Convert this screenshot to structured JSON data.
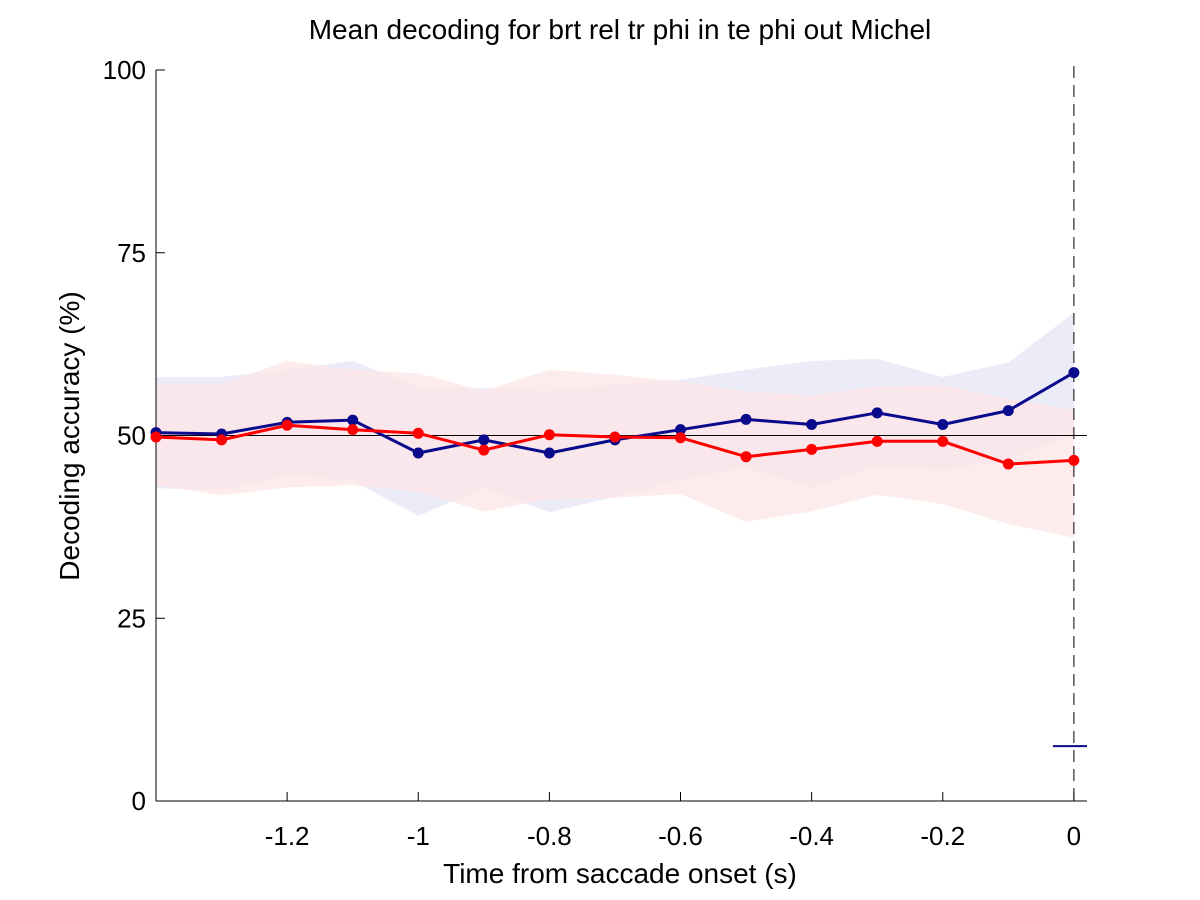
{
  "chart_data": {
    "type": "line",
    "title": "Mean decoding for brt rel tr phi in te phi out  Michel",
    "xlabel": "Time from saccade onset (s)",
    "ylabel": "Decoding accuracy (%)",
    "xlim": [
      -1.4,
      0.02
    ],
    "ylim": [
      0,
      100
    ],
    "x_ticks": [
      -1.2,
      -1.0,
      -0.8,
      -0.6,
      -0.4,
      -0.2,
      0
    ],
    "x_tick_labels": [
      "-1.2",
      "-1",
      "-0.8",
      "-0.6",
      "-0.4",
      "-0.2",
      "0"
    ],
    "y_ticks": [
      0,
      25,
      50,
      75,
      100
    ],
    "y_tick_labels": [
      "0",
      "25",
      "50",
      "75",
      "100"
    ],
    "x": [
      -1.4,
      -1.3,
      -1.2,
      -1.1,
      -1.0,
      -0.9,
      -0.8,
      -0.7,
      -0.6,
      -0.5,
      -0.4,
      -0.3,
      -0.2,
      -0.1,
      0.0
    ],
    "series": [
      {
        "color": "#0a0a8c",
        "band_color": "#e6e6f7",
        "values": [
          50.4,
          50.2,
          51.8,
          52.1,
          47.6,
          49.4,
          47.6,
          49.4,
          50.8,
          52.2,
          51.5,
          53.1,
          51.5,
          53.4,
          58.6
        ],
        "upper": [
          58,
          58,
          59,
          60.2,
          56.6,
          56.5,
          56.1,
          57,
          57.6,
          59,
          60.2,
          60.5,
          58,
          60,
          66.8
        ],
        "lower": [
          42.8,
          42.5,
          44.5,
          43.8,
          39,
          42.8,
          39.5,
          41.6,
          43.9,
          45.6,
          42.9,
          45.8,
          45.2,
          46.8,
          50
        ]
      },
      {
        "color": "#ff0000",
        "band_color": "#fde6e6",
        "values": [
          49.8,
          49.4,
          51.4,
          50.8,
          50.3,
          48.0,
          50.1,
          49.8,
          49.7,
          47.1,
          48.1,
          49.2,
          49.2,
          46.1,
          46.6
        ],
        "upper": [
          57,
          57,
          60.2,
          59,
          58.5,
          56.1,
          59,
          58.3,
          57.4,
          56,
          55.5,
          56.7,
          56.9,
          55,
          53.5
        ],
        "lower": [
          43.2,
          41.8,
          42.9,
          43.2,
          42.3,
          39.6,
          41.3,
          41.5,
          42,
          38.2,
          39.6,
          41.9,
          40.6,
          37.9,
          36
        ]
      }
    ],
    "reference_line_y": 50,
    "reference_line_x": 0,
    "marker_segment": {
      "y": 7.5,
      "x_start": -0.032,
      "x_end": 0.02,
      "color": "#0a0a8c"
    },
    "grid": false,
    "legend": "none"
  }
}
